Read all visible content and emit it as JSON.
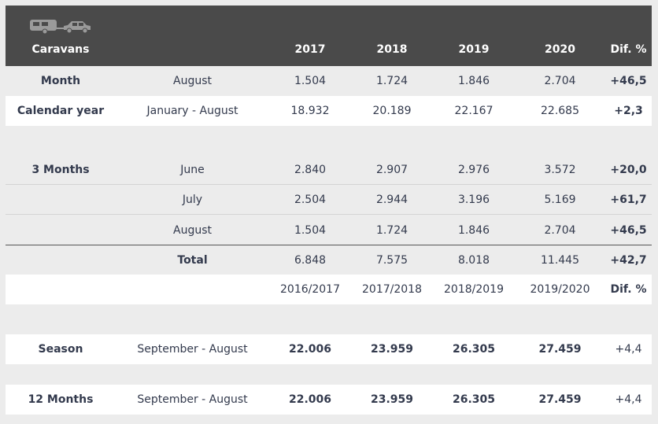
{
  "header": {
    "col0": "Caravans",
    "years": [
      "2017",
      "2018",
      "2019",
      "2020"
    ],
    "dif": "Dif. %"
  },
  "rows": {
    "month": {
      "label": "Month",
      "period": "August",
      "values": [
        "1.504",
        "1.724",
        "1.846",
        "2.704"
      ],
      "dif": "+46,5"
    },
    "calendar": {
      "label": "Calendar year",
      "period": "January - August",
      "values": [
        "18.932",
        "20.189",
        "22.167",
        "22.685"
      ],
      "dif": "+2,3"
    },
    "m3_june": {
      "label": "3 Months",
      "period": "June",
      "values": [
        "2.840",
        "2.907",
        "2.976",
        "3.572"
      ],
      "dif": "+20,0"
    },
    "m3_july": {
      "label": "",
      "period": "July",
      "values": [
        "2.504",
        "2.944",
        "3.196",
        "5.169"
      ],
      "dif": "+61,7"
    },
    "m3_aug": {
      "label": "",
      "period": "August",
      "values": [
        "1.504",
        "1.724",
        "1.846",
        "2.704"
      ],
      "dif": "+46,5"
    },
    "total": {
      "label": "",
      "period": "Total",
      "values": [
        "6.848",
        "7.575",
        "8.018",
        "11.445"
      ],
      "dif": "+42,7"
    },
    "season_header": {
      "label": "",
      "period": "",
      "values": [
        "2016/2017",
        "2017/2018",
        "2018/2019",
        "2019/2020"
      ],
      "dif": "Dif. %"
    },
    "season": {
      "label": "Season",
      "period": "September - August",
      "values": [
        "22.006",
        "23.959",
        "26.305",
        "27.459"
      ],
      "dif": "+4,4"
    },
    "m12": {
      "label": "12 Months",
      "period": "September - August",
      "values": [
        "22.006",
        "23.959",
        "26.305",
        "27.459"
      ],
      "dif": "+4,4"
    }
  },
  "icons": [
    "caravan-icon",
    "car-icon"
  ],
  "colors": {
    "header_bg": "#4a4a4a",
    "text": "#333a4d",
    "page_bg": "#ececec"
  }
}
